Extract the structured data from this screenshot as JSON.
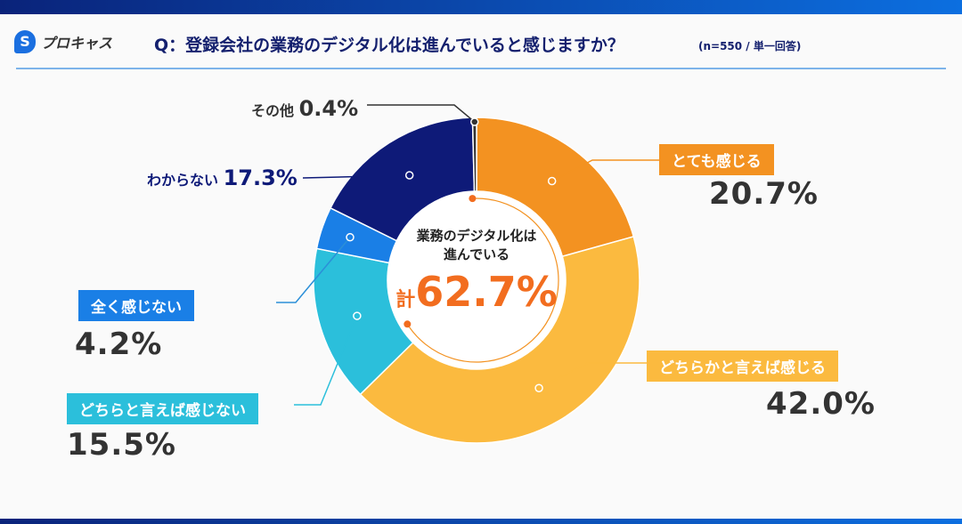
{
  "header": {
    "logo_text": "プロキャス",
    "title": "Q：登録会社の業務のデジタル化は進んでいると感じますか？",
    "note": "(n=550 / 単一回答)"
  },
  "chart_data": {
    "type": "pie",
    "donut": true,
    "title": "Q：登録会社の業務のデジタル化は進んでいると感じますか？",
    "categories": [
      "とても感じる",
      "どちらかと言えば感じる",
      "どちらと言えば感じない",
      "全く感じない",
      "わからない",
      "その他"
    ],
    "values": [
      20.7,
      42.0,
      15.5,
      4.2,
      17.3,
      0.4
    ],
    "labels": [
      "20.7%",
      "42.0%",
      "15.5%",
      "4.2%",
      "17.3%",
      "0.4%"
    ],
    "colors": [
      "#F39221",
      "#FBBA3F",
      "#2BBFDB",
      "#1A7FE6",
      "#0E1A78",
      "#333333"
    ],
    "unit": "%",
    "start": "top, clockwise",
    "center": {
      "line1": "業務のデジタル化は",
      "line2": "進んでいる",
      "prefix": "計",
      "total": "62.7%"
    }
  }
}
